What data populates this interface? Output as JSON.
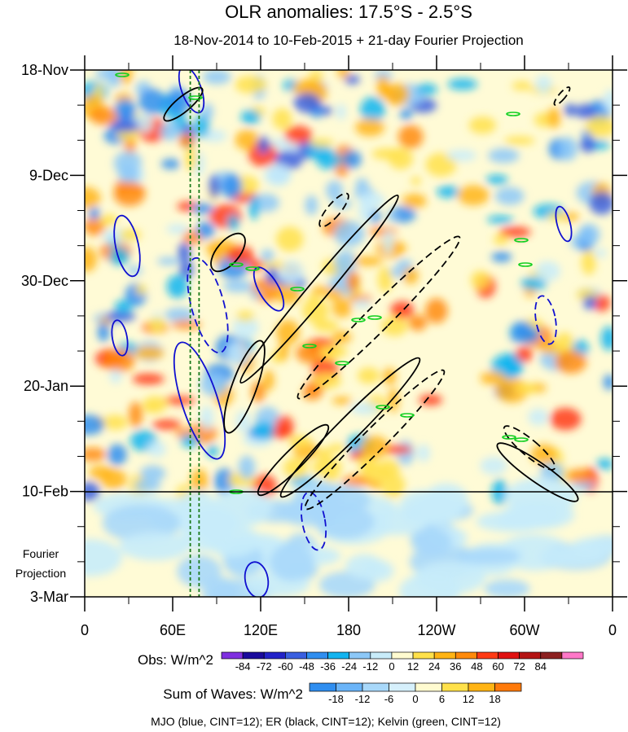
{
  "chart_data": {
    "type": "heatmap",
    "title": "OLR anomalies: 17.5°S - 2.5°S",
    "subtitle": "18-Nov-2014 to 10-Feb-2015 + 21-day Fourier Projection",
    "x_axis": {
      "ticks": [
        "0",
        "60E",
        "120E",
        "180",
        "120W",
        "60W",
        "0"
      ],
      "values": [
        0,
        60,
        120,
        180,
        240,
        300,
        360
      ]
    },
    "y_axis": {
      "ticks": [
        "18-Nov",
        "9-Dec",
        "30-Dec",
        "20-Jan",
        "10-Feb",
        "3-Mar"
      ],
      "values": [
        0,
        21,
        42,
        63,
        84,
        105
      ],
      "range": [
        0,
        105
      ]
    },
    "projection_start": "10-Feb",
    "projection_label": [
      "Fourier",
      "Projection"
    ],
    "obs_colorbar": {
      "label": "Obs: W/m^2",
      "ticks": [
        "-84",
        "-72",
        "-60",
        "-48",
        "-36",
        "-24",
        "-12",
        "0",
        "12",
        "24",
        "36",
        "48",
        "60",
        "72",
        "84"
      ],
      "colors": [
        "#7f2fe0",
        "#1a0a9c",
        "#2222c8",
        "#3a5fe0",
        "#2f8ef0",
        "#12b4f0",
        "#8cc8f8",
        "#c8ecfa",
        "#fffbd0",
        "#ffe14a",
        "#ffb414",
        "#ff8a0a",
        "#ff3a14",
        "#e01010",
        "#b41414",
        "#8c2020",
        "#ff78c8"
      ]
    },
    "waves_colorbar": {
      "label": "Sum of Waves: W/m^2",
      "ticks": [
        "-18",
        "-12",
        "-6",
        "0",
        "6",
        "12",
        "18"
      ],
      "colors": [
        "#2f8ef0",
        "#6ab4f8",
        "#a8d8fa",
        "#d6f0fc",
        "#fffbd0",
        "#ffe14a",
        "#ffb414",
        "#ff7a0a"
      ]
    },
    "footer": "MJO (blue, CINT=12); ER (black, CINT=12); Kelvin (green, CINT=12)",
    "contour_series": [
      {
        "name": "MJO",
        "color": "#1010d0"
      },
      {
        "name": "ER",
        "color": "#000000"
      },
      {
        "name": "Kelvin",
        "color": "#10d020"
      }
    ],
    "reference_lines_lon": [
      72,
      78
    ]
  }
}
